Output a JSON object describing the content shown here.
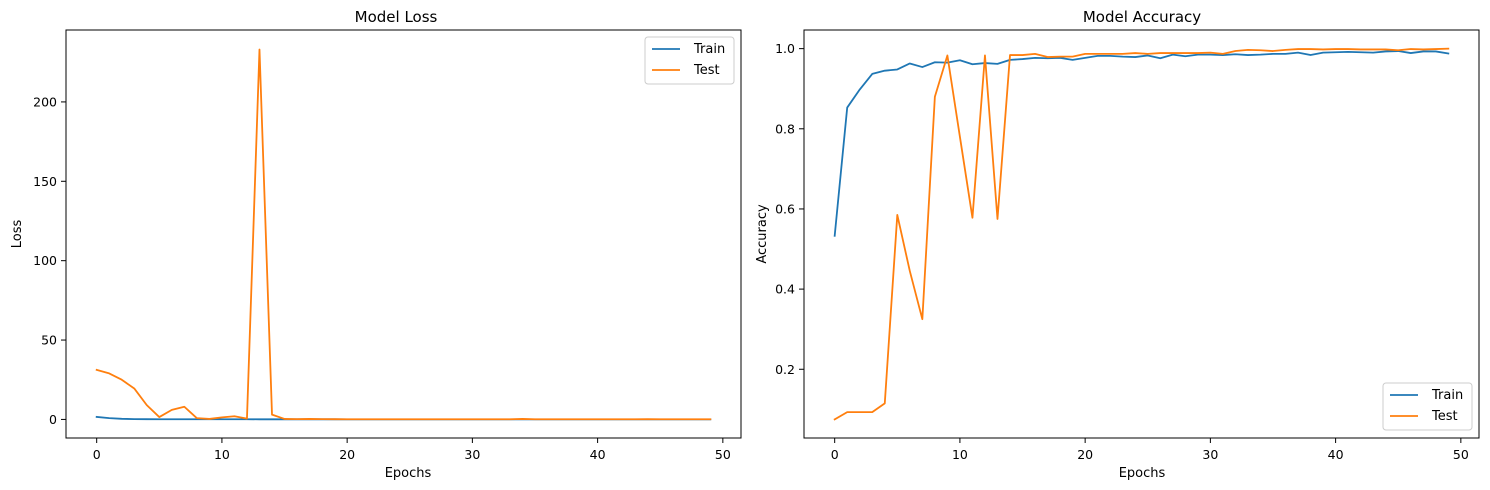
{
  "chart_data": [
    {
      "type": "line",
      "title": "Model Loss",
      "xlabel": "Epochs",
      "ylabel": "Loss",
      "xlim": [
        -2.45,
        51.45
      ],
      "ylim": [
        -11.7,
        245.3
      ],
      "xticks": [
        0,
        10,
        20,
        30,
        40,
        50
      ],
      "yticks": [
        0,
        50,
        100,
        150,
        200
      ],
      "grid": false,
      "legend_position": "top-right",
      "x": [
        0,
        1,
        2,
        3,
        4,
        5,
        6,
        7,
        8,
        9,
        10,
        11,
        12,
        13,
        14,
        15,
        16,
        17,
        18,
        19,
        20,
        21,
        22,
        23,
        24,
        25,
        26,
        27,
        28,
        29,
        30,
        31,
        32,
        33,
        34,
        35,
        36,
        37,
        38,
        39,
        40,
        41,
        42,
        43,
        44,
        45,
        46,
        47,
        48,
        49
      ],
      "series": [
        {
          "name": "Train",
          "color": "#1f77b4",
          "values": [
            1.6,
            0.8,
            0.4,
            0.2,
            0.15,
            0.12,
            0.12,
            0.1,
            0.1,
            0.09,
            0.09,
            0.1,
            0.1,
            0.08,
            0.07,
            0.07,
            0.06,
            0.06,
            0.06,
            0.07,
            0.05,
            0.05,
            0.05,
            0.05,
            0.05,
            0.05,
            0.05,
            0.05,
            0.05,
            0.05,
            0.05,
            0.04,
            0.04,
            0.04,
            0.04,
            0.04,
            0.04,
            0.04,
            0.04,
            0.04,
            0.03,
            0.03,
            0.03,
            0.03,
            0.03,
            0.03,
            0.03,
            0.03,
            0.03,
            0.04
          ]
        },
        {
          "name": "Test",
          "color": "#ff7f0e",
          "values": [
            31.2,
            29,
            25,
            19.5,
            9,
            1.5,
            6,
            8,
            0.8,
            0.3,
            1.3,
            2,
            0.5,
            233,
            3,
            0.3,
            0.2,
            0.3,
            0.2,
            0.15,
            0.1,
            0.1,
            0.1,
            0.1,
            0.1,
            0.1,
            0.1,
            0.1,
            0.1,
            0.1,
            0.1,
            0.1,
            0.1,
            0.1,
            0.3,
            0.1,
            0.1,
            0.1,
            0.1,
            0.1,
            0.1,
            0.1,
            0.1,
            0.1,
            0.2,
            0.1,
            0.1,
            0.1,
            0.1,
            0.1
          ]
        }
      ]
    },
    {
      "type": "line",
      "title": "Model Accuracy",
      "xlabel": "Epochs",
      "ylabel": "Accuracy",
      "xlim": [
        -2.45,
        51.45
      ],
      "ylim": [
        0.0285,
        1.0465
      ],
      "xticks": [
        0,
        10,
        20,
        30,
        40,
        50
      ],
      "yticks": [
        0.2,
        0.4,
        0.6,
        0.8,
        1.0
      ],
      "ytick_labels": [
        "0.2",
        "0.4",
        "0.6",
        "0.8",
        "1.0"
      ],
      "grid": false,
      "legend_position": "bottom-right",
      "x": [
        0,
        1,
        2,
        3,
        4,
        5,
        6,
        7,
        8,
        9,
        10,
        11,
        12,
        13,
        14,
        15,
        16,
        17,
        18,
        19,
        20,
        21,
        22,
        23,
        24,
        25,
        26,
        27,
        28,
        29,
        30,
        31,
        32,
        33,
        34,
        35,
        36,
        37,
        38,
        39,
        40,
        41,
        42,
        43,
        44,
        45,
        46,
        47,
        48,
        49
      ],
      "series": [
        {
          "name": "Train",
          "color": "#1f77b4",
          "values": [
            0.533,
            0.853,
            0.898,
            0.937,
            0.945,
            0.948,
            0.963,
            0.954,
            0.966,
            0.965,
            0.971,
            0.961,
            0.964,
            0.962,
            0.972,
            0.974,
            0.977,
            0.976,
            0.977,
            0.972,
            0.977,
            0.982,
            0.982,
            0.98,
            0.979,
            0.983,
            0.976,
            0.985,
            0.981,
            0.985,
            0.985,
            0.984,
            0.986,
            0.984,
            0.985,
            0.987,
            0.987,
            0.99,
            0.984,
            0.99,
            0.991,
            0.992,
            0.991,
            0.99,
            0.993,
            0.994,
            0.989,
            0.993,
            0.993,
            0.988
          ]
        },
        {
          "name": "Test",
          "color": "#ff7f0e",
          "values": [
            0.075,
            0.093,
            0.093,
            0.093,
            0.115,
            0.585,
            0.445,
            0.325,
            0.88,
            0.983,
            0.78,
            0.578,
            0.983,
            0.575,
            0.984,
            0.984,
            0.987,
            0.979,
            0.98,
            0.98,
            0.987,
            0.987,
            0.987,
            0.987,
            0.989,
            0.987,
            0.989,
            0.989,
            0.989,
            0.989,
            0.99,
            0.987,
            0.994,
            0.997,
            0.996,
            0.994,
            0.997,
            0.999,
            0.999,
            0.998,
            0.999,
            0.999,
            0.998,
            0.998,
            0.998,
            0.996,
            0.999,
            0.998,
            0.999,
            1.0
          ]
        }
      ]
    }
  ]
}
